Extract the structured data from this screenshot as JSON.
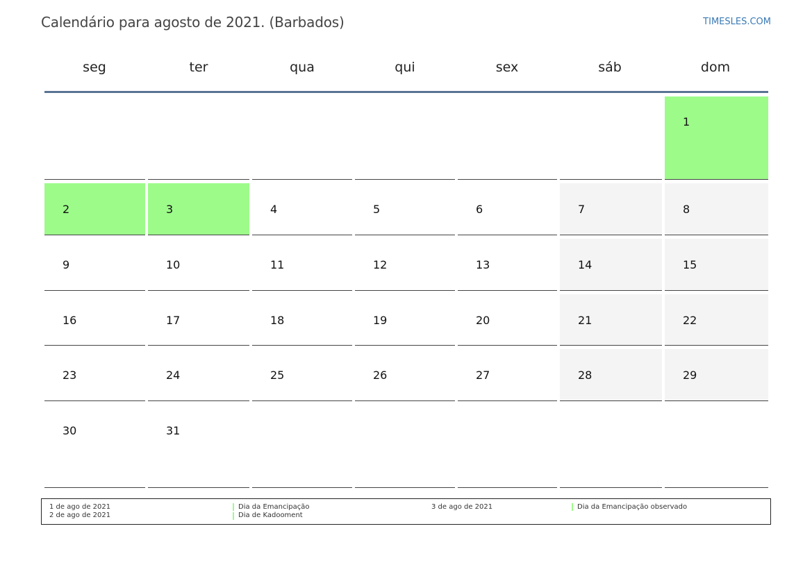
{
  "header": {
    "title": "Calendário para agosto de 2021. (Barbados)",
    "brand": "TIMESLES.COM"
  },
  "weekdays": [
    "seg",
    "ter",
    "qua",
    "qui",
    "sex",
    "sáb",
    "dom"
  ],
  "weeks": [
    [
      "",
      "",
      "",
      "",
      "",
      "",
      "1"
    ],
    [
      "2",
      "3",
      "4",
      "5",
      "6",
      "7",
      "8"
    ],
    [
      "9",
      "10",
      "11",
      "12",
      "13",
      "14",
      "15"
    ],
    [
      "16",
      "17",
      "18",
      "19",
      "20",
      "21",
      "22"
    ],
    [
      "23",
      "24",
      "25",
      "26",
      "27",
      "28",
      "29"
    ],
    [
      "30",
      "31",
      "",
      "",
      "",
      "",
      ""
    ]
  ],
  "holiday_days": [
    "1",
    "2",
    "3"
  ],
  "colors": {
    "holiday": "#9dfb8a",
    "weekend": "#f4f4f4",
    "header_line": "#5a7394",
    "brand": "#3a7ab5"
  },
  "legend": {
    "date_1": "1 de ago de 2021",
    "date_2": "2 de ago de 2021",
    "name_1": "Dia da Emancipação",
    "name_2": "Dia de Kadooment",
    "date_3": "3 de ago de 2021",
    "name_3": "Dia da Emancipação observado"
  }
}
